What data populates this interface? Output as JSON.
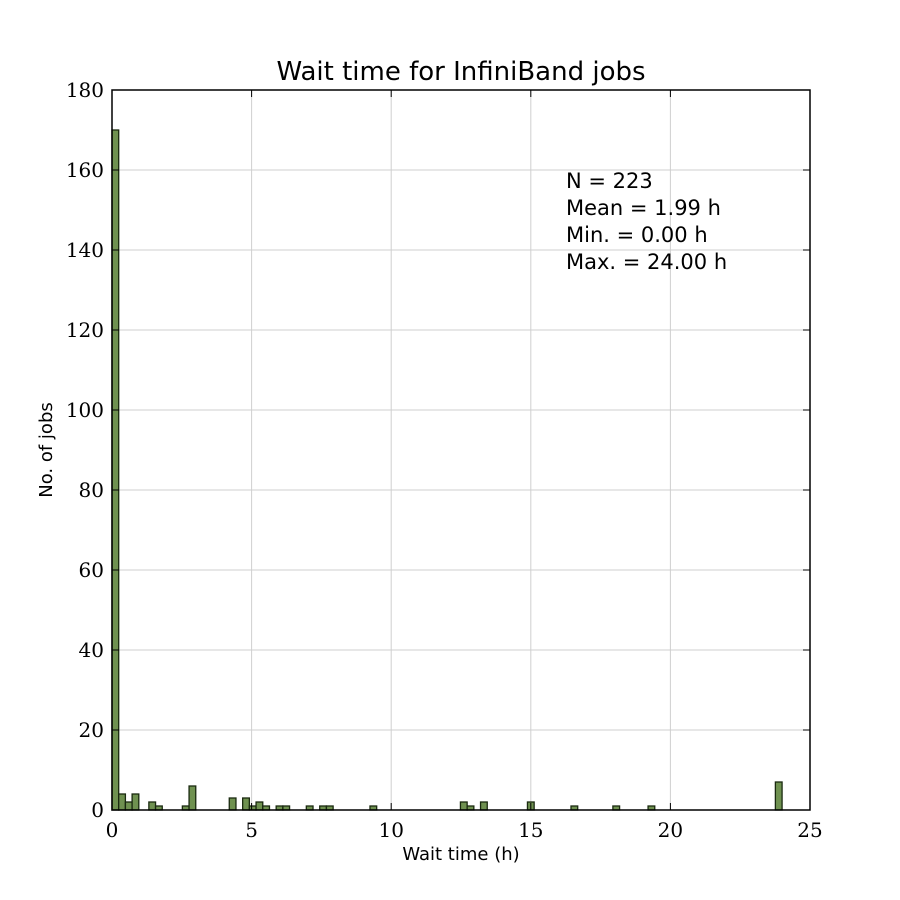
{
  "chart_data": {
    "type": "bar",
    "title": "Wait time for InfiniBand jobs",
    "xlabel": "Wait time (h)",
    "ylabel": "No. of jobs",
    "xlim": [
      0,
      25
    ],
    "ylim": [
      0,
      180
    ],
    "xticks": [
      0,
      5,
      10,
      15,
      20,
      25
    ],
    "yticks": [
      0,
      20,
      40,
      60,
      80,
      100,
      120,
      140,
      160,
      180
    ],
    "grid": true,
    "bin_width": 0.24,
    "bar_color": "#6f9150",
    "edge_color": "#1a2a10",
    "bins": [
      {
        "x": 0.0,
        "count": 170
      },
      {
        "x": 0.24,
        "count": 4
      },
      {
        "x": 0.48,
        "count": 2
      },
      {
        "x": 0.72,
        "count": 4
      },
      {
        "x": 1.32,
        "count": 2
      },
      {
        "x": 1.56,
        "count": 1
      },
      {
        "x": 2.52,
        "count": 1
      },
      {
        "x": 2.76,
        "count": 6
      },
      {
        "x": 4.2,
        "count": 3
      },
      {
        "x": 4.68,
        "count": 3
      },
      {
        "x": 4.92,
        "count": 1
      },
      {
        "x": 5.16,
        "count": 2
      },
      {
        "x": 5.4,
        "count": 1
      },
      {
        "x": 5.88,
        "count": 1
      },
      {
        "x": 6.12,
        "count": 1
      },
      {
        "x": 6.96,
        "count": 1
      },
      {
        "x": 7.44,
        "count": 1
      },
      {
        "x": 7.68,
        "count": 1
      },
      {
        "x": 9.24,
        "count": 1
      },
      {
        "x": 12.48,
        "count": 2
      },
      {
        "x": 12.72,
        "count": 1
      },
      {
        "x": 13.2,
        "count": 2
      },
      {
        "x": 14.88,
        "count": 2
      },
      {
        "x": 16.44,
        "count": 1
      },
      {
        "x": 17.94,
        "count": 1
      },
      {
        "x": 19.2,
        "count": 1
      },
      {
        "x": 23.76,
        "count": 7
      }
    ]
  },
  "stats": {
    "n": "N = 223",
    "mean": "Mean = 1.99 h",
    "min": "Min. = 0.00 h",
    "max": "Max. = 24.00 h"
  }
}
